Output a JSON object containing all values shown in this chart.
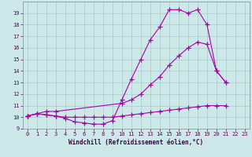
{
  "bg_color": "#cce8e8",
  "grid_color": "#aacccc",
  "line_color": "#aa00aa",
  "marker": "+",
  "markersize": 4,
  "linewidth": 0.8,
  "line1_x": [
    0,
    1,
    2,
    3,
    4,
    5,
    6,
    7,
    8,
    9,
    10,
    11,
    12,
    13,
    14,
    15,
    16,
    17,
    18,
    19,
    20,
    21,
    22,
    23
  ],
  "line1_y": [
    10.1,
    10.3,
    10.2,
    10.1,
    9.9,
    9.6,
    9.5,
    9.4,
    9.4,
    9.7,
    11.5,
    13.3,
    15.0,
    16.7,
    17.8,
    19.3,
    19.3,
    19.0,
    19.3,
    18.0,
    14.0,
    13.0,
    null,
    null
  ],
  "line2_x": [
    0,
    1,
    2,
    3,
    10,
    11,
    12,
    13,
    14,
    15,
    16,
    17,
    18,
    19,
    20,
    21,
    22,
    23
  ],
  "line2_y": [
    10.1,
    10.3,
    10.5,
    10.5,
    11.2,
    11.5,
    12.0,
    12.8,
    13.5,
    14.5,
    15.3,
    16.0,
    16.5,
    16.3,
    14.0,
    13.0,
    null,
    null
  ],
  "line3_x": [
    0,
    1,
    2,
    3,
    4,
    5,
    6,
    7,
    8,
    9,
    10,
    11,
    12,
    13,
    14,
    15,
    16,
    17,
    18,
    19,
    20,
    21,
    22,
    23
  ],
  "line3_y": [
    10.1,
    10.3,
    10.2,
    10.1,
    10.0,
    10.0,
    10.0,
    10.0,
    10.0,
    10.0,
    10.1,
    10.2,
    10.3,
    10.4,
    10.5,
    10.6,
    10.7,
    10.8,
    10.9,
    11.0,
    11.0,
    11.0,
    null,
    null
  ],
  "xlabel": "Windchill (Refroidissement éolien,°C)",
  "xlim": [
    -0.5,
    23.5
  ],
  "ylim": [
    9,
    20
  ],
  "yticks": [
    9,
    10,
    11,
    12,
    13,
    14,
    15,
    16,
    17,
    18,
    19
  ],
  "xticks": [
    0,
    1,
    2,
    3,
    4,
    5,
    6,
    7,
    8,
    9,
    10,
    11,
    12,
    13,
    14,
    15,
    16,
    17,
    18,
    19,
    20,
    21,
    22,
    23
  ],
  "tick_fontsize": 5.0,
  "xlabel_fontsize": 5.5
}
